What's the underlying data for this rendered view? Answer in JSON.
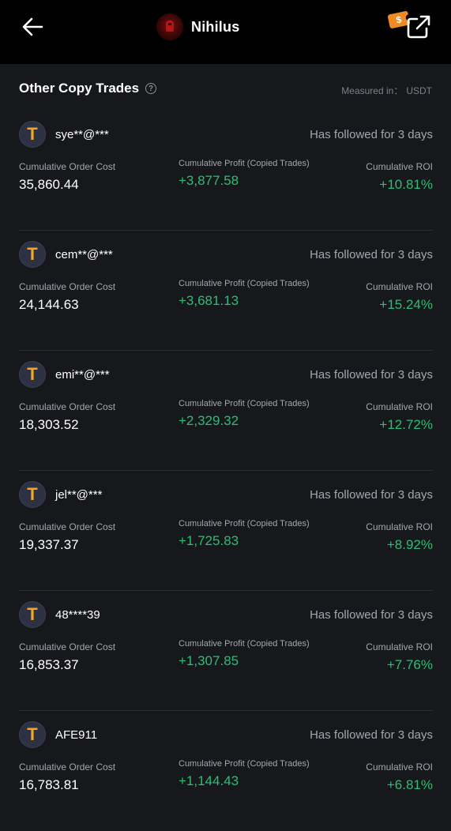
{
  "header": {
    "trader_name": "Nihilus",
    "coupon_symbol": "$"
  },
  "section": {
    "title": "Other Copy Trades",
    "measured_label": "Measured in：",
    "measured_unit": "USDT"
  },
  "labels": {
    "cost": "Cumulative Order Cost",
    "profit": "Cumulative Profit (Copied Trades)",
    "roi": "Cumulative ROI"
  },
  "trades": [
    {
      "user": "sye**@***",
      "followed": "Has followed for 3 days",
      "cost": "35,860.44",
      "profit": "+3,877.58",
      "roi": "+10.81%"
    },
    {
      "user": "cem**@***",
      "followed": "Has followed for 3 days",
      "cost": "24,144.63",
      "profit": "+3,681.13",
      "roi": "+15.24%"
    },
    {
      "user": "emi**@***",
      "followed": "Has followed for 3 days",
      "cost": "18,303.52",
      "profit": "+2,329.32",
      "roi": "+12.72%"
    },
    {
      "user": "jel**@***",
      "followed": "Has followed for 3 days",
      "cost": "19,337.37",
      "profit": "+1,725.83",
      "roi": "+8.92%"
    },
    {
      "user": "48****39",
      "followed": "Has followed for 3 days",
      "cost": "16,853.37",
      "profit": "+1,307.85",
      "roi": "+7.76%"
    },
    {
      "user": "AFE911",
      "followed": "Has followed for 3 days",
      "cost": "16,783.81",
      "profit": "+1,144.43",
      "roi": "+6.81%"
    }
  ],
  "icons": {
    "back": "arrow-left-icon",
    "share": "share-external-icon",
    "help": "question-circle-icon",
    "coin": "tether-usdt-icon"
  },
  "colors": {
    "profit_green": "#2dbd74",
    "coin_gold": "#f5a623",
    "coupon_orange": "#f08a24"
  }
}
